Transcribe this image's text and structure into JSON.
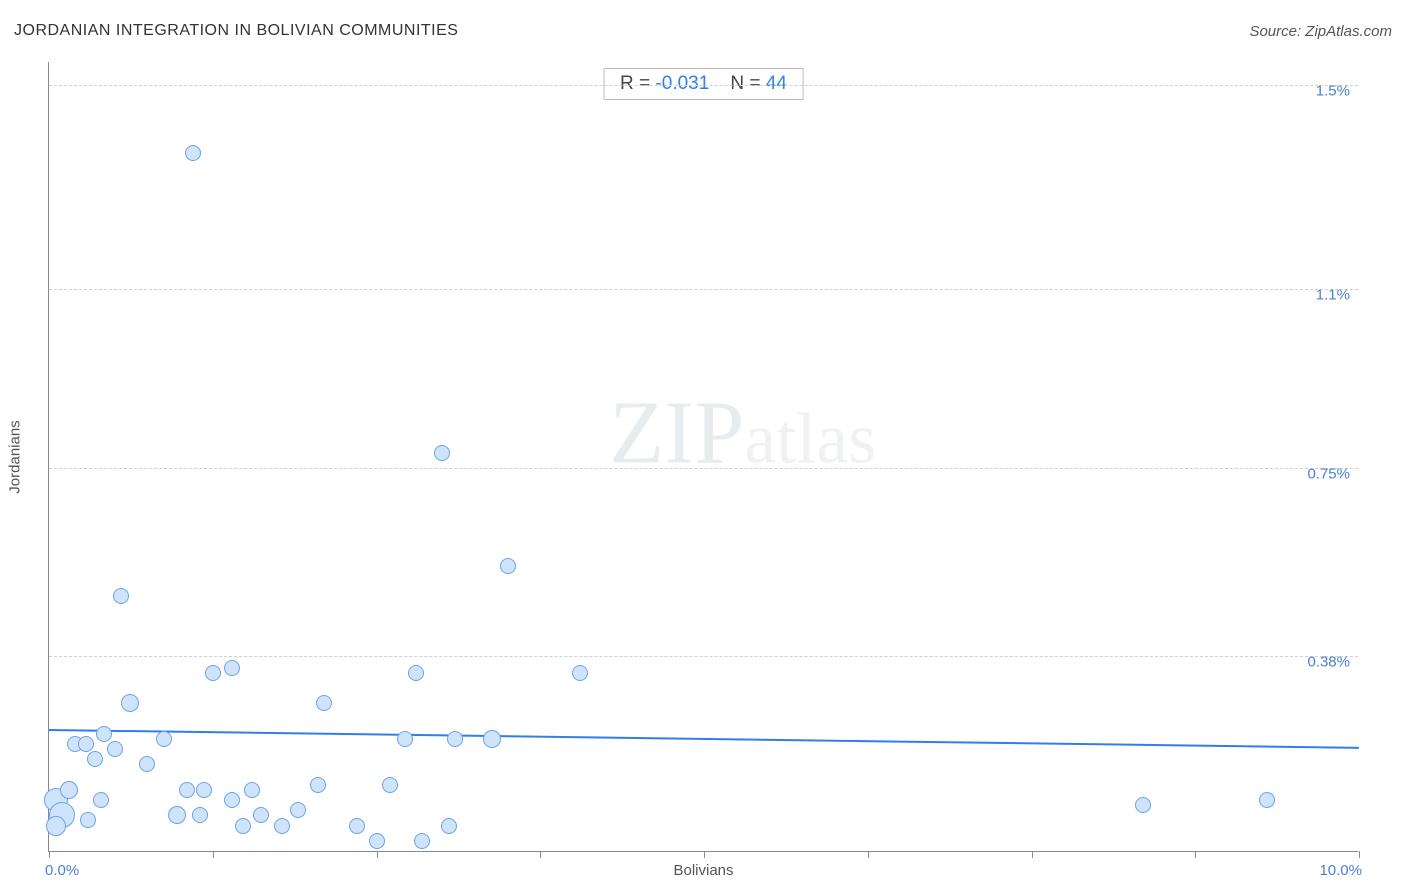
{
  "header": {
    "title": "JORDANIAN INTEGRATION IN BOLIVIAN COMMUNITIES",
    "source": "Source: ZipAtlas.com"
  },
  "watermark": {
    "zip": "ZIP",
    "atlas": "atlas"
  },
  "chart": {
    "type": "scatter",
    "xlabel": "Bolivians",
    "ylabel": "Jordanians",
    "xlim": [
      0.0,
      10.0
    ],
    "ylim": [
      0.0,
      1.55
    ],
    "xlim_labels": [
      "0.0%",
      "10.0%"
    ],
    "xticks": [
      0.0,
      1.25,
      2.5,
      3.75,
      5.0,
      6.25,
      7.5,
      8.75,
      10.0
    ],
    "yticks": [
      {
        "v": 0.38,
        "label": "0.38%"
      },
      {
        "v": 0.75,
        "label": "0.75%"
      },
      {
        "v": 1.1,
        "label": "1.1%"
      },
      {
        "v": 1.5,
        "label": "1.5%"
      }
    ],
    "grid_color": "#d0d0d0",
    "background_color": "#ffffff",
    "axis_color": "#888888",
    "point_fill": "#cfe3fb",
    "point_stroke": "#6aa3e8",
    "point_radius": 8,
    "trend": {
      "color": "#2f7eed",
      "width": 2,
      "y_at_x0": 0.235,
      "y_at_xmax": 0.2
    },
    "stats": {
      "r_label": "R = ",
      "r_value": "-0.031",
      "n_label": "N = ",
      "n_value": "44"
    },
    "points": [
      {
        "x": 0.05,
        "y": 0.1,
        "r": 12
      },
      {
        "x": 0.1,
        "y": 0.07,
        "r": 13
      },
      {
        "x": 0.15,
        "y": 0.12,
        "r": 9
      },
      {
        "x": 0.05,
        "y": 0.05,
        "r": 10
      },
      {
        "x": 0.2,
        "y": 0.21,
        "r": 8
      },
      {
        "x": 0.28,
        "y": 0.21,
        "r": 8
      },
      {
        "x": 0.35,
        "y": 0.18,
        "r": 8
      },
      {
        "x": 0.42,
        "y": 0.23,
        "r": 8
      },
      {
        "x": 0.5,
        "y": 0.2,
        "r": 8
      },
      {
        "x": 0.4,
        "y": 0.1,
        "r": 8
      },
      {
        "x": 0.62,
        "y": 0.29,
        "r": 9
      },
      {
        "x": 0.55,
        "y": 0.5,
        "r": 8
      },
      {
        "x": 1.1,
        "y": 1.37,
        "r": 8
      },
      {
        "x": 0.75,
        "y": 0.17,
        "r": 8
      },
      {
        "x": 0.88,
        "y": 0.22,
        "r": 8
      },
      {
        "x": 0.98,
        "y": 0.07,
        "r": 9
      },
      {
        "x": 1.05,
        "y": 0.12,
        "r": 8
      },
      {
        "x": 1.15,
        "y": 0.07,
        "r": 8
      },
      {
        "x": 1.18,
        "y": 0.12,
        "r": 8
      },
      {
        "x": 1.25,
        "y": 0.35,
        "r": 8
      },
      {
        "x": 1.4,
        "y": 0.36,
        "r": 8
      },
      {
        "x": 1.4,
        "y": 0.1,
        "r": 8
      },
      {
        "x": 1.48,
        "y": 0.05,
        "r": 8
      },
      {
        "x": 1.55,
        "y": 0.12,
        "r": 8
      },
      {
        "x": 1.62,
        "y": 0.07,
        "r": 8
      },
      {
        "x": 1.78,
        "y": 0.05,
        "r": 8
      },
      {
        "x": 1.9,
        "y": 0.08,
        "r": 8
      },
      {
        "x": 2.05,
        "y": 0.13,
        "r": 8
      },
      {
        "x": 2.1,
        "y": 0.29,
        "r": 8
      },
      {
        "x": 2.35,
        "y": 0.05,
        "r": 8
      },
      {
        "x": 2.5,
        "y": 0.02,
        "r": 8
      },
      {
        "x": 2.6,
        "y": 0.13,
        "r": 8
      },
      {
        "x": 2.72,
        "y": 0.22,
        "r": 8
      },
      {
        "x": 2.8,
        "y": 0.35,
        "r": 8
      },
      {
        "x": 2.85,
        "y": 0.02,
        "r": 8
      },
      {
        "x": 3.0,
        "y": 0.78,
        "r": 8
      },
      {
        "x": 3.05,
        "y": 0.05,
        "r": 8
      },
      {
        "x": 3.1,
        "y": 0.22,
        "r": 8
      },
      {
        "x": 3.38,
        "y": 0.22,
        "r": 9
      },
      {
        "x": 3.5,
        "y": 0.56,
        "r": 8
      },
      {
        "x": 4.05,
        "y": 0.35,
        "r": 8
      },
      {
        "x": 8.35,
        "y": 0.09,
        "r": 8
      },
      {
        "x": 9.3,
        "y": 0.1,
        "r": 8
      },
      {
        "x": 0.3,
        "y": 0.06,
        "r": 8
      }
    ]
  }
}
